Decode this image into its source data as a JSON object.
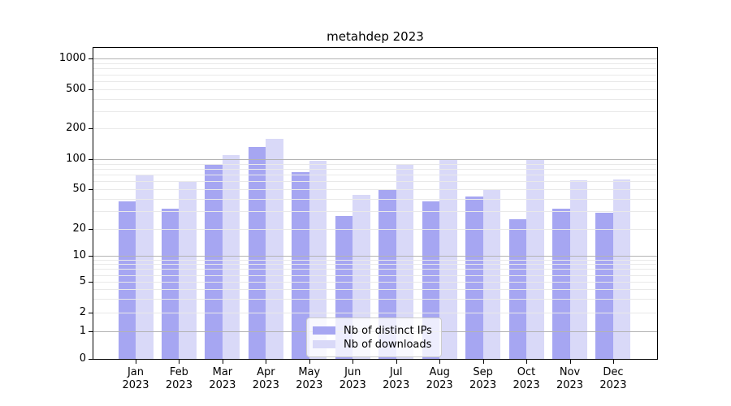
{
  "title": "metahdep 2023",
  "chart_data": {
    "type": "bar",
    "title": "metahdep 2023",
    "categories": [
      "Jan",
      "Feb",
      "Mar",
      "Apr",
      "May",
      "Jun",
      "Jul",
      "Aug",
      "Sep",
      "Oct",
      "Nov",
      "Dec"
    ],
    "category_year": "2023",
    "series": [
      {
        "name": "Nb of distinct IPs",
        "color": "#a6a6f2",
        "values": [
          38,
          32,
          89,
          131,
          74,
          27,
          50,
          38,
          42,
          25,
          32,
          29
        ]
      },
      {
        "name": "Nb of downloads",
        "color": "#d9d9f8",
        "values": [
          70,
          60,
          110,
          158,
          96,
          44,
          90,
          100,
          50,
          100,
          62,
          63
        ]
      }
    ],
    "yscale": "symlog",
    "ylim": [
      0,
      1000
    ],
    "yticks": [
      1000,
      500,
      200,
      100,
      50,
      20,
      10,
      5,
      2,
      1,
      0
    ],
    "grid": true,
    "grid_major_color": "#b3b3b3",
    "grid_minor_color": "#e9e9e9",
    "legend_position": "lower center"
  }
}
